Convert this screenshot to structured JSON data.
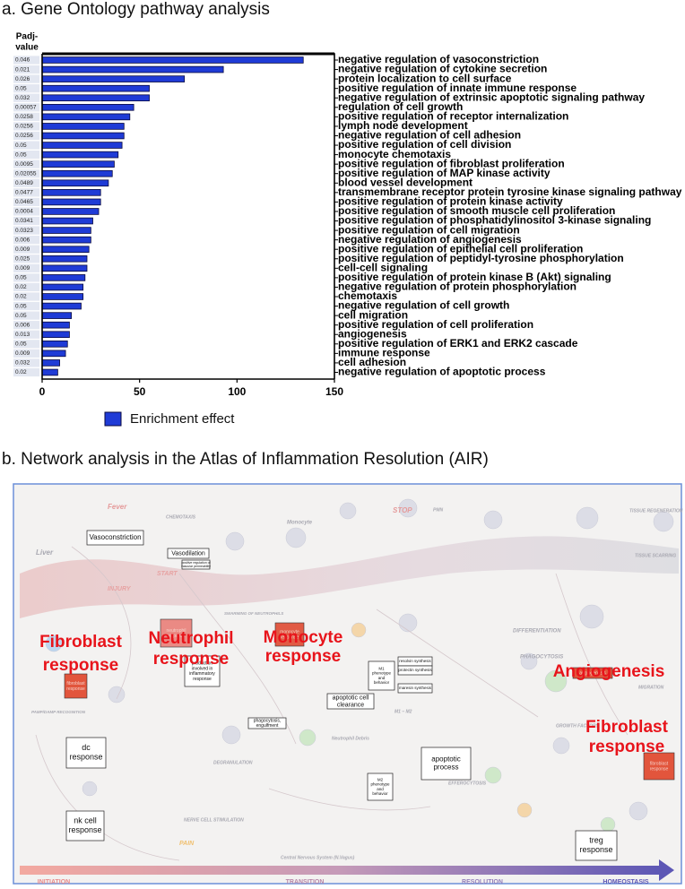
{
  "chart_data": {
    "type": "barh",
    "title": "a. Gene Ontology pathway analysis",
    "padj_label": [
      "Padj-",
      "value"
    ],
    "categories": [
      "negative regulation of vasoconstriction",
      "negative regulation of cytokine secretion",
      "protein localization to cell surface",
      "positive regulation of innate immune response",
      "negative regulation of extrinsic apoptotic signaling pathway",
      "regulation of cell growth",
      "positive regulation of receptor internalization",
      "lymph node development",
      "negative regulation of cell adhesion",
      "positive regulation of cell division",
      "monocyte chemotaxis",
      "positive regulation of fibroblast proliferation",
      "positive regulation of MAP kinase activity",
      "blood vessel development",
      "transmembrane receptor protein tyrosine kinase signaling pathway",
      "positive regulation of protein kinase activity",
      "positive regulation of smooth muscle cell proliferation",
      "positive regulation of phosphatidylinositol 3-kinase signaling",
      "positive regulation of cell migration",
      "negative regulation of angiogenesis",
      "positive regulation of epithelial cell proliferation",
      "positive regulation of peptidyl-tyrosine phosphorylation",
      "cell-cell signaling",
      "positive regulation of protein kinase B (Akt) signaling",
      "negative regulation of protein phosphorylation",
      "chemotaxis",
      "negative regulation of cell growth",
      "cell migration",
      "positive regulation of cell proliferation",
      "angiogenesis",
      "positive regulation of ERK1 and ERK2 cascade",
      "immune response",
      "cell adhesion",
      "negative regulation of apoptotic process"
    ],
    "padj": [
      0.046,
      0.021,
      0.026,
      0.05,
      0.032,
      0.00057,
      0.0258,
      0.0256,
      0.0256,
      0.05,
      0.05,
      0.0095,
      0.02055,
      0.0489,
      0.0477,
      0.0465,
      0.0004,
      0.0341,
      0.0323,
      0.006,
      0.009,
      0.025,
      0.009,
      0.05,
      0.02,
      0.02,
      0.05,
      0.05,
      0.006,
      0.013,
      0.05,
      0.009,
      0.032,
      0.02
    ],
    "series": [
      {
        "name": "Enrichment effect",
        "color": "#1f3bd6",
        "values": [
          134,
          93,
          73,
          55,
          55,
          47,
          45,
          42,
          42,
          41,
          39,
          37,
          36,
          34,
          30,
          30,
          29,
          26,
          25,
          25,
          24,
          23,
          23,
          22,
          21,
          21,
          20,
          15,
          14,
          14,
          13,
          12,
          9,
          8
        ]
      }
    ],
    "xlim": [
      0,
      150
    ],
    "xticks": [
      0,
      50,
      100,
      150
    ]
  },
  "network": {
    "title": "b. Network analysis in the Atlas of Inflammation Resolution (AIR)",
    "highlights": [
      [
        "Fibroblast",
        "response"
      ],
      [
        "Neutrophil",
        "response"
      ],
      [
        "Monocyte",
        "response"
      ],
      [
        "Angiogenesis"
      ],
      [
        "Fibroblast",
        "response"
      ]
    ],
    "boxes": [
      [
        "Vasoconstriction"
      ],
      [
        "Vasodilation"
      ],
      [
        "positive regulation of",
        "vascular permeability"
      ],
      [
        "production",
        "involved in",
        "inflammatory",
        "response"
      ],
      [
        "phagocytosis,",
        "engulfment"
      ],
      [
        "apoptotic cell",
        "clearance"
      ],
      [
        "M1",
        "phenotype",
        "and",
        "behavior"
      ],
      [
        "resolvin synthesis"
      ],
      [
        "protectin synthesis"
      ],
      [
        "maresin synthesis"
      ],
      [
        "apoptotic",
        "process"
      ],
      [
        "M2",
        "phenotype",
        "and",
        "behavior"
      ],
      [
        "dc",
        "response"
      ],
      [
        "nk cell",
        "response"
      ],
      [
        "treg",
        "response"
      ]
    ],
    "filled_boxes": [
      [
        "neutrophil",
        "response"
      ],
      [
        "monocyte",
        "response"
      ],
      [
        "fibroblast",
        "response"
      ],
      [
        "angiogenesis"
      ],
      [
        "fibroblast",
        "response"
      ]
    ],
    "labels": [
      "Fever",
      "CHEMOTAXIS",
      "Liver",
      "START",
      "INJURY",
      "STOP",
      "Monocyte",
      "PMN",
      "DIFFERENTIATION",
      "PHAGOCYTOSIS",
      "EFFEROCYTOSIS",
      "PAIN",
      "NERVE CELL STIMULATION",
      "DEGRANULATION",
      "Neutrophil Debris",
      "TISSUE REGENERATION",
      "TISSUE SCARRING",
      "MIGRATION",
      "GROWTH FACTORS",
      "M1 – M2",
      "Central Nervous System (N.Vagus)",
      "SWARMING OF NEUTROPHILS",
      "PAMP/DAMP RECOGNITION"
    ],
    "stages": [
      "INITIATION",
      "TRANSITION",
      "RESOLUTION",
      "HOMEOSTASIS"
    ]
  }
}
